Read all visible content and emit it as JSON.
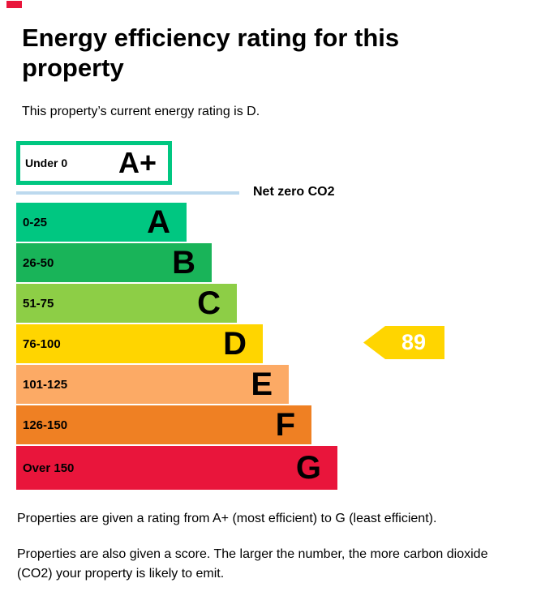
{
  "page": {
    "title": "Energy efficiency rating for this property",
    "subtitle": "This property’s current energy rating is D.",
    "footer_line1": "Properties are given a rating from A+ (most efficient) to G (least efficient).",
    "footer_line2": "Properties are also given a score. The larger the number, the more carbon dioxide (CO2) your property is likely to emit."
  },
  "chart_data": {
    "type": "bar",
    "orientation": "horizontal",
    "title": "Energy efficiency rating for this property",
    "current_rating": "D",
    "net_zero_label": "Net zero CO2",
    "net_zero_line_color": "#bcd9ee",
    "bands": [
      {
        "letter": "A+",
        "range": "Under 0",
        "fill": "#ffffff",
        "border": "#00c781"
      },
      {
        "letter": "A",
        "range": "0-25",
        "fill": "#00c781"
      },
      {
        "letter": "B",
        "range": "26-50",
        "fill": "#19b459"
      },
      {
        "letter": "C",
        "range": "51-75",
        "fill": "#8dce46"
      },
      {
        "letter": "D",
        "range": "76-100",
        "fill": "#ffd500"
      },
      {
        "letter": "E",
        "range": "101-125",
        "fill": "#fcaa65"
      },
      {
        "letter": "F",
        "range": "126-150",
        "fill": "#ef8023"
      },
      {
        "letter": "G",
        "range": "Over 150",
        "fill": "#e9153b"
      }
    ],
    "marker": {
      "value": 89,
      "fill": "#ffd500",
      "text_color": "#ffffff",
      "points_to_band": "D"
    }
  }
}
